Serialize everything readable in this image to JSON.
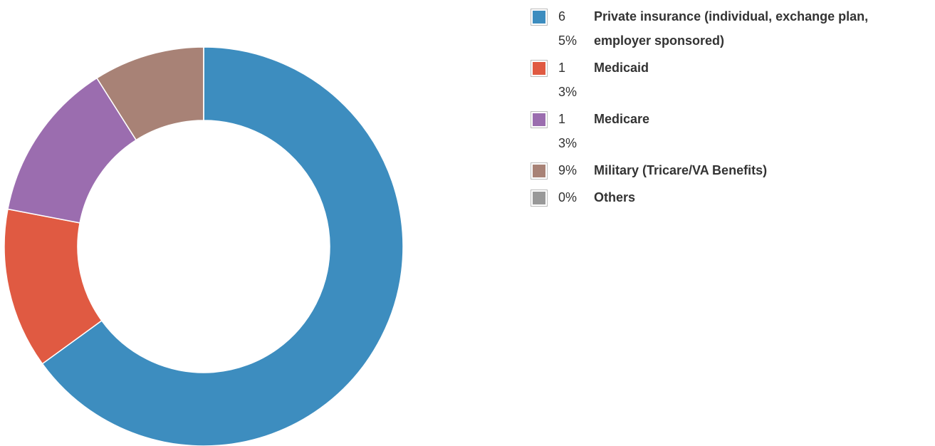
{
  "chart_data": {
    "type": "donut",
    "categories": [
      "Private insurance (individual, exchange plan, employer sponsored)",
      "Medicaid",
      "Medicare",
      "Military (Tricare/VA Benefits)",
      "Others"
    ],
    "values": [
      65,
      13,
      13,
      9,
      0
    ],
    "value_labels": [
      "65%",
      "13%",
      "13%",
      "9%",
      "0%"
    ],
    "colors": [
      "#3d8dbf",
      "#e05a42",
      "#9b6daf",
      "#a88276",
      "#999999"
    ]
  }
}
